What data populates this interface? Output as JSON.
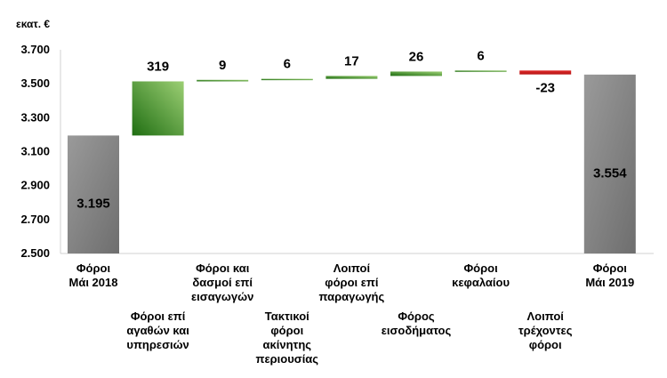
{
  "chart_data": {
    "type": "waterfall",
    "unit_label": "εκατ. €",
    "ylim": [
      2500,
      3700
    ],
    "yticks": [
      "2.500",
      "2.700",
      "2.900",
      "3.100",
      "3.300",
      "3.500",
      "3.700"
    ],
    "ytick_values": [
      2500,
      2700,
      2900,
      3100,
      3300,
      3500,
      3700
    ],
    "grid": false,
    "colors": {
      "total": "#808080",
      "increase": "#2e7d1f",
      "decrease": "#cc1f1f"
    },
    "steps": [
      {
        "category": "Φόροι Μάι 2018",
        "type": "total",
        "value": 3195,
        "label": "3.195"
      },
      {
        "category": "Φόροι επί αγαθών και υπηρεσιών",
        "type": "increase",
        "value": 319,
        "label": "319"
      },
      {
        "category": "Φόροι και δασμοί επί εισαγωγών",
        "type": "increase",
        "value": 9,
        "label": "9"
      },
      {
        "category": "Τακτικοί φόροι ακίνητης περιουσίας",
        "type": "increase",
        "value": 6,
        "label": "6"
      },
      {
        "category": "Λοιποί φόροι επί παραγωγής",
        "type": "increase",
        "value": 17,
        "label": "17"
      },
      {
        "category": "Φόρος εισοδήματος",
        "type": "increase",
        "value": 26,
        "label": "26"
      },
      {
        "category": "Φόροι κεφαλαίου",
        "type": "increase",
        "value": 6,
        "label": "6"
      },
      {
        "category": "Λοιποί τρέχοντες φόροι",
        "type": "decrease",
        "value": -23,
        "label": "-23"
      },
      {
        "category": "Φόροι Μάι 2019",
        "type": "total",
        "value": 3554,
        "label": "3.554"
      }
    ]
  }
}
